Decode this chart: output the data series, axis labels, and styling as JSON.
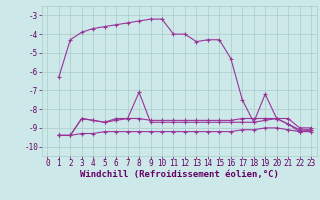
{
  "xlabel": "Windchill (Refroidissement éolien,°C)",
  "line_color": "#993399",
  "bg_color": "#cce8e8",
  "grid_color": "#aacccc",
  "series": [
    [
      null,
      -6.3,
      -4.3,
      -3.9,
      -3.7,
      -3.6,
      -3.5,
      -3.4,
      -3.3,
      -3.2,
      -3.2,
      -4.0,
      -4.0,
      -4.4,
      -4.3,
      -4.3,
      -5.3,
      -7.5,
      -8.7,
      -7.2,
      -8.5,
      -8.8,
      -9.2,
      -9.1
    ],
    [
      null,
      -9.4,
      -9.4,
      -8.5,
      -8.6,
      -8.7,
      -8.6,
      -8.5,
      -7.1,
      -8.7,
      -8.7,
      -8.7,
      -8.7,
      -8.7,
      -8.7,
      -8.7,
      -8.7,
      -8.7,
      -8.7,
      -8.6,
      -8.5,
      -8.8,
      -9.1,
      -9.1
    ],
    [
      null,
      -9.4,
      -9.4,
      -8.5,
      -8.6,
      -8.7,
      -8.5,
      -8.5,
      -8.5,
      -8.6,
      -8.6,
      -8.6,
      -8.6,
      -8.6,
      -8.6,
      -8.6,
      -8.6,
      -8.5,
      -8.5,
      -8.5,
      -8.5,
      -8.5,
      -9.0,
      -9.0
    ],
    [
      null,
      -9.4,
      -9.4,
      -9.3,
      -9.3,
      -9.2,
      -9.2,
      -9.2,
      -9.2,
      -9.2,
      -9.2,
      -9.2,
      -9.2,
      -9.2,
      -9.2,
      -9.2,
      -9.2,
      -9.1,
      -9.1,
      -9.0,
      -9.0,
      -9.1,
      -9.2,
      -9.2
    ]
  ],
  "xlim": [
    -0.5,
    23.5
  ],
  "ylim": [
    -10.5,
    -2.5
  ],
  "yticks": [
    -3,
    -4,
    -5,
    -6,
    -7,
    -8,
    -9,
    -10
  ],
  "xticks": [
    0,
    1,
    2,
    3,
    4,
    5,
    6,
    7,
    8,
    9,
    10,
    11,
    12,
    13,
    14,
    15,
    16,
    17,
    18,
    19,
    20,
    21,
    22,
    23
  ],
  "tick_fontsize": 5.5,
  "xlabel_fontsize": 6.5
}
